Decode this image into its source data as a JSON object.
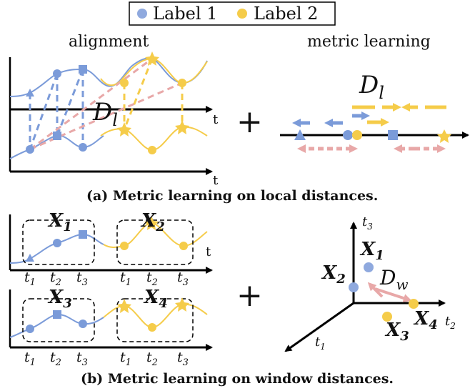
{
  "legend": {
    "label1": "Label 1",
    "label2": "Label 2",
    "color1": "#8FA9DE",
    "color2": "#F5CC4A"
  },
  "colors": {
    "blue": "#7B9BD9",
    "blue_dark": "#6A8BD1",
    "yellow": "#F5CC4A",
    "pink": "#E8A8A8",
    "axis": "#000000"
  },
  "panel_a": {
    "alignment_title": "alignment",
    "metric_title": "metric learning",
    "dl_main": "D",
    "dl_sub": "l",
    "axis_t": "t",
    "plus": "+",
    "caption": "(a) Metric learning on local distances."
  },
  "panel_b": {
    "windows": [
      {
        "main": "X",
        "sub": "1"
      },
      {
        "main": "X",
        "sub": "2"
      },
      {
        "main": "X",
        "sub": "3"
      },
      {
        "main": "X",
        "sub": "4"
      }
    ],
    "ticks": [
      {
        "main": "t",
        "sub": "1"
      },
      {
        "main": "t",
        "sub": "2"
      },
      {
        "main": "t",
        "sub": "3"
      }
    ],
    "axis_t": "t",
    "plus": "+",
    "space_labels": {
      "t1": {
        "main": "t",
        "sub": "1"
      },
      "t2": {
        "main": "t",
        "sub": "2"
      },
      "t3": {
        "main": "t",
        "sub": "3"
      }
    },
    "points": [
      {
        "main": "X",
        "sub": "1"
      },
      {
        "main": "X",
        "sub": "2"
      },
      {
        "main": "X",
        "sub": "3"
      },
      {
        "main": "X",
        "sub": "4"
      }
    ],
    "dw_main": "D",
    "dw_sub": "w",
    "caption": "(b) Metric learning on window distances."
  }
}
